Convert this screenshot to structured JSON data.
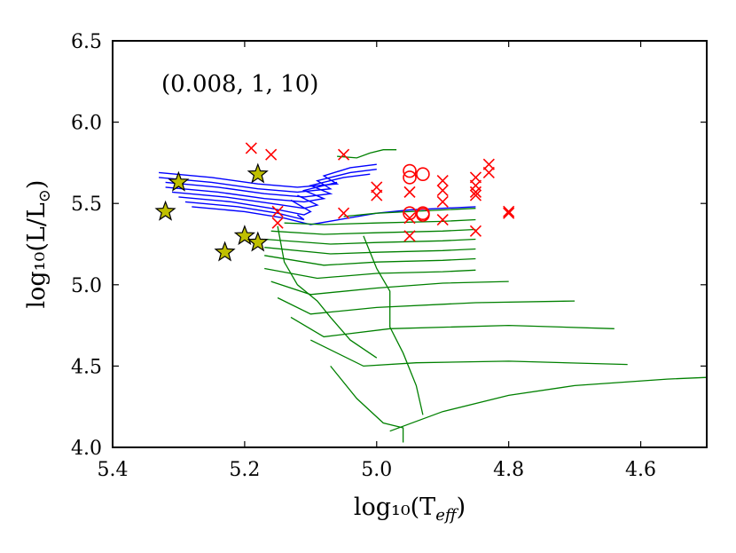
{
  "chart_data": {
    "type": "scatter",
    "annotation": "(0.008, 1, 10)",
    "xlabel": "log₁₀(T",
    "xlabel_sub": "eff",
    "xlabel_close": ")",
    "ylabel": "log₁₀(L/L",
    "ylabel_sub": "⊙",
    "ylabel_close": ")",
    "xlim": [
      5.4,
      4.5
    ],
    "ylim": [
      4.0,
      6.5
    ],
    "xticks": [
      5.4,
      5.2,
      5.0,
      4.8,
      4.6
    ],
    "xtick_labels": [
      "5.4",
      "5.2",
      "5.0",
      "4.8",
      "4.6"
    ],
    "yticks": [
      4.0,
      4.5,
      5.0,
      5.5,
      6.0,
      6.5
    ],
    "ytick_labels": [
      "4.0",
      "4.5",
      "5.0",
      "5.5",
      "6.0",
      "6.5"
    ],
    "colors": {
      "crosses": "#ff0000",
      "circles": "#ff0000",
      "stars_fill": "#bfbf00",
      "stars_edge": "#000000",
      "blue_tracks": "#0000ff",
      "green_tracks": "#008000"
    },
    "series": [
      {
        "name": "crosses",
        "marker": "x",
        "points": [
          {
            "x": 5.19,
            "y": 5.84
          },
          {
            "x": 5.16,
            "y": 5.8
          },
          {
            "x": 5.05,
            "y": 5.8
          },
          {
            "x": 5.15,
            "y": 5.45
          },
          {
            "x": 5.15,
            "y": 5.38
          },
          {
            "x": 5.05,
            "y": 5.44
          },
          {
            "x": 5.0,
            "y": 5.6
          },
          {
            "x": 5.0,
            "y": 5.55
          },
          {
            "x": 4.95,
            "y": 5.57
          },
          {
            "x": 4.95,
            "y": 5.3
          },
          {
            "x": 4.95,
            "y": 5.41
          },
          {
            "x": 4.9,
            "y": 5.64
          },
          {
            "x": 4.9,
            "y": 5.58
          },
          {
            "x": 4.9,
            "y": 5.51
          },
          {
            "x": 4.9,
            "y": 5.4
          },
          {
            "x": 4.85,
            "y": 5.66
          },
          {
            "x": 4.85,
            "y": 5.61
          },
          {
            "x": 4.85,
            "y": 5.57
          },
          {
            "x": 4.85,
            "y": 5.55
          },
          {
            "x": 4.85,
            "y": 5.33
          },
          {
            "x": 4.83,
            "y": 5.74
          },
          {
            "x": 4.83,
            "y": 5.69
          },
          {
            "x": 4.8,
            "y": 5.45
          },
          {
            "x": 4.8,
            "y": 5.44
          }
        ]
      },
      {
        "name": "circles",
        "marker": "o",
        "points": [
          {
            "x": 4.95,
            "y": 5.7
          },
          {
            "x": 4.95,
            "y": 5.66
          },
          {
            "x": 4.93,
            "y": 5.68
          },
          {
            "x": 4.95,
            "y": 5.44
          },
          {
            "x": 4.93,
            "y": 5.43
          },
          {
            "x": 4.93,
            "y": 5.44
          }
        ]
      },
      {
        "name": "stars",
        "marker": "*",
        "points": [
          {
            "x": 5.3,
            "y": 5.63
          },
          {
            "x": 5.18,
            "y": 5.68
          },
          {
            "x": 5.32,
            "y": 5.45
          },
          {
            "x": 5.2,
            "y": 5.3
          },
          {
            "x": 5.18,
            "y": 5.26
          },
          {
            "x": 5.23,
            "y": 5.2
          }
        ]
      }
    ],
    "blue_tracks": [
      {
        "points": [
          [
            5.33,
            5.69
          ],
          [
            5.25,
            5.66
          ],
          [
            5.18,
            5.62
          ],
          [
            5.12,
            5.6
          ],
          [
            5.06,
            5.62
          ],
          [
            5.08,
            5.67
          ],
          [
            5.04,
            5.72
          ],
          [
            5.0,
            5.74
          ]
        ]
      },
      {
        "points": [
          [
            5.33,
            5.66
          ],
          [
            5.25,
            5.63
          ],
          [
            5.18,
            5.59
          ],
          [
            5.12,
            5.57
          ],
          [
            5.07,
            5.59
          ],
          [
            5.09,
            5.64
          ],
          [
            5.04,
            5.69
          ],
          [
            5.0,
            5.71
          ]
        ]
      },
      {
        "points": [
          [
            5.32,
            5.63
          ],
          [
            5.24,
            5.6
          ],
          [
            5.17,
            5.56
          ],
          [
            5.11,
            5.54
          ],
          [
            5.07,
            5.56
          ],
          [
            5.1,
            5.61
          ],
          [
            5.05,
            5.66
          ],
          [
            5.01,
            5.68
          ]
        ]
      },
      {
        "points": [
          [
            5.32,
            5.6
          ],
          [
            5.24,
            5.57
          ],
          [
            5.17,
            5.53
          ],
          [
            5.11,
            5.51
          ],
          [
            5.08,
            5.53
          ],
          [
            5.11,
            5.58
          ],
          [
            5.06,
            5.63
          ]
        ]
      },
      {
        "points": [
          [
            5.31,
            5.57
          ],
          [
            5.23,
            5.54
          ],
          [
            5.16,
            5.5
          ],
          [
            5.11,
            5.47
          ],
          [
            5.09,
            5.49
          ],
          [
            5.12,
            5.55
          ]
        ]
      },
      {
        "points": [
          [
            5.3,
            5.54
          ],
          [
            5.22,
            5.51
          ],
          [
            5.16,
            5.47
          ],
          [
            5.11,
            5.43
          ],
          [
            5.1,
            5.45
          ],
          [
            5.13,
            5.52
          ]
        ]
      },
      {
        "points": [
          [
            5.29,
            5.51
          ],
          [
            5.21,
            5.48
          ],
          [
            5.15,
            5.44
          ],
          [
            5.11,
            5.4
          ],
          [
            5.12,
            5.43
          ]
        ]
      },
      {
        "points": [
          [
            5.28,
            5.48
          ],
          [
            5.2,
            5.45
          ],
          [
            5.14,
            5.41
          ],
          [
            5.1,
            5.37
          ],
          [
            5.0,
            5.44
          ],
          [
            4.95,
            5.46
          ],
          [
            4.85,
            5.48
          ]
        ]
      }
    ],
    "green_tracks": [
      {
        "points": [
          [
            5.06,
            5.79
          ],
          [
            5.03,
            5.78
          ],
          [
            5.01,
            5.81
          ],
          [
            4.99,
            5.83
          ],
          [
            4.97,
            5.83
          ]
        ]
      },
      {
        "points": [
          [
            5.05,
            5.42
          ],
          [
            5.0,
            5.44
          ],
          [
            4.95,
            5.45
          ],
          [
            4.9,
            5.46
          ],
          [
            4.85,
            5.47
          ]
        ]
      },
      {
        "points": [
          [
            5.14,
            5.38
          ],
          [
            5.08,
            5.37
          ],
          [
            5.0,
            5.38
          ],
          [
            4.9,
            5.39
          ],
          [
            4.85,
            5.4
          ]
        ]
      },
      {
        "points": [
          [
            5.16,
            5.33
          ],
          [
            5.08,
            5.31
          ],
          [
            5.0,
            5.32
          ],
          [
            4.9,
            5.33
          ],
          [
            4.85,
            5.34
          ]
        ]
      },
      {
        "points": [
          [
            5.17,
            5.28
          ],
          [
            5.07,
            5.25
          ],
          [
            5.0,
            5.26
          ],
          [
            4.9,
            5.27
          ],
          [
            4.85,
            5.28
          ]
        ]
      },
      {
        "points": [
          [
            5.17,
            5.23
          ],
          [
            5.07,
            5.19
          ],
          [
            5.0,
            5.2
          ],
          [
            4.9,
            5.21
          ],
          [
            4.85,
            5.22
          ]
        ]
      },
      {
        "points": [
          [
            5.17,
            5.18
          ],
          [
            5.08,
            5.12
          ],
          [
            5.0,
            5.14
          ],
          [
            4.9,
            5.15
          ],
          [
            4.85,
            5.16
          ]
        ]
      },
      {
        "points": [
          [
            5.17,
            5.1
          ],
          [
            5.09,
            5.04
          ],
          [
            5.0,
            5.07
          ],
          [
            4.9,
            5.08
          ],
          [
            4.85,
            5.09
          ]
        ]
      },
      {
        "points": [
          [
            5.16,
            5.02
          ],
          [
            5.1,
            4.94
          ],
          [
            5.0,
            4.98
          ],
          [
            4.9,
            5.01
          ],
          [
            4.8,
            5.02
          ]
        ]
      },
      {
        "points": [
          [
            5.15,
            4.92
          ],
          [
            5.1,
            4.82
          ],
          [
            5.0,
            4.86
          ],
          [
            4.85,
            4.89
          ],
          [
            4.7,
            4.9
          ]
        ]
      },
      {
        "points": [
          [
            5.13,
            4.8
          ],
          [
            5.08,
            4.68
          ],
          [
            4.98,
            4.73
          ],
          [
            4.8,
            4.75
          ],
          [
            4.64,
            4.73
          ]
        ]
      },
      {
        "points": [
          [
            5.1,
            4.66
          ],
          [
            5.02,
            4.5
          ],
          [
            4.94,
            4.52
          ],
          [
            4.8,
            4.53
          ],
          [
            4.62,
            4.51
          ]
        ]
      },
      {
        "points": [
          [
            5.07,
            4.5
          ],
          [
            5.03,
            4.3
          ],
          [
            4.99,
            4.15
          ],
          [
            4.96,
            4.12
          ],
          [
            4.96,
            4.03
          ]
        ]
      },
      {
        "points": [
          [
            4.98,
            4.1
          ],
          [
            4.9,
            4.22
          ],
          [
            4.8,
            4.32
          ],
          [
            4.7,
            4.38
          ],
          [
            4.56,
            4.42
          ],
          [
            4.5,
            4.43
          ]
        ]
      },
      {
        "points": [
          [
            5.02,
            5.3
          ],
          [
            5.0,
            5.1
          ],
          [
            4.98,
            4.96
          ],
          [
            4.98,
            4.74
          ],
          [
            4.96,
            4.58
          ],
          [
            4.94,
            4.38
          ],
          [
            4.93,
            4.2
          ]
        ]
      },
      {
        "points": [
          [
            5.15,
            5.36
          ],
          [
            5.14,
            5.14
          ],
          [
            5.12,
            5.0
          ],
          [
            5.09,
            4.9
          ],
          [
            5.07,
            4.8
          ],
          [
            5.04,
            4.66
          ],
          [
            5.0,
            4.55
          ]
        ]
      }
    ]
  }
}
